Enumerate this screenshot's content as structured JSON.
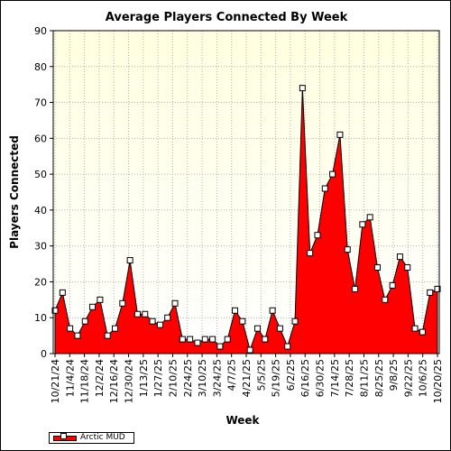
{
  "chart_data": {
    "type": "area",
    "title": "Average Players Connected By Week",
    "xlabel": "Week",
    "ylabel": "Players Connected",
    "ylim": [
      0,
      90
    ],
    "yticks": [
      0,
      10,
      20,
      30,
      40,
      50,
      60,
      70,
      80,
      90
    ],
    "grid": true,
    "legend_position": "bottom-left",
    "colors": {
      "fill": "#ff0000",
      "plot_bg_top": "#ffffe0",
      "plot_bg_bottom": "#ffffff",
      "grid": "#b0b0b0",
      "marker": "#ffffff"
    },
    "x_tick_labels": [
      "10/21/24",
      "11/4/24",
      "11/18/24",
      "12/2/24",
      "12/16/24",
      "12/30/24",
      "1/13/25",
      "1/27/25",
      "2/10/25",
      "2/24/25",
      "3/10/25",
      "3/24/25",
      "4/7/25",
      "4/21/25",
      "5/5/25",
      "5/19/25",
      "6/2/25",
      "6/16/25",
      "6/30/25",
      "7/14/25",
      "7/28/25",
      "8/11/25",
      "8/25/25",
      "9/8/25",
      "9/22/25",
      "10/6/25",
      "10/20/25"
    ],
    "series": [
      {
        "name": "Arctic MUD",
        "values": [
          12,
          17,
          7,
          5,
          9,
          13,
          15,
          5,
          7,
          14,
          26,
          11,
          11,
          9,
          8,
          10,
          14,
          4,
          4,
          3,
          4,
          4,
          2,
          4,
          12,
          9,
          1,
          7,
          4,
          12,
          7,
          2,
          9,
          74,
          28,
          33,
          46,
          50,
          61,
          29,
          18,
          36,
          38,
          24,
          15,
          19,
          27,
          24,
          7,
          6,
          17,
          18
        ]
      }
    ]
  }
}
